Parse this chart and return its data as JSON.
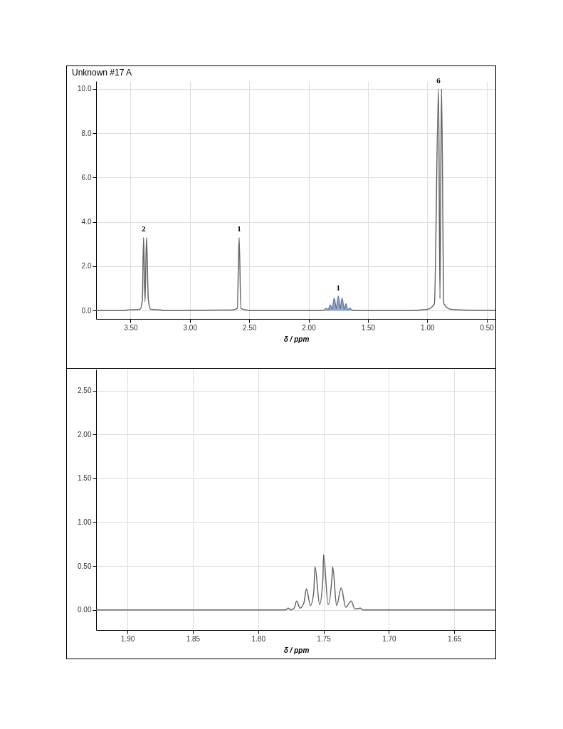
{
  "chart_data": [
    {
      "type": "line",
      "title": "Unknown #17 A",
      "xlabel": "δ / ppm",
      "xlim": [
        3.79,
        0.42
      ],
      "xticks": [
        {
          "value": 3.5,
          "label": "3.50"
        },
        {
          "value": 3.0,
          "label": "3.00"
        },
        {
          "value": 2.5,
          "label": "2.50"
        },
        {
          "value": 2.0,
          "label": "2.00"
        },
        {
          "value": 1.5,
          "label": "1.50"
        },
        {
          "value": 1.0,
          "label": "1.00"
        },
        {
          "value": 0.5,
          "label": "0.50"
        }
      ],
      "ylim": [
        -0.38,
        10.35
      ],
      "yticks": [
        {
          "value": 0,
          "label": "0.0"
        },
        {
          "value": 2,
          "label": "2.0"
        },
        {
          "value": 4,
          "label": "4.0"
        },
        {
          "value": 6,
          "label": "6.0"
        },
        {
          "value": 8,
          "label": "8.0"
        },
        {
          "value": 10,
          "label": "10.0"
        }
      ],
      "grid": true,
      "series": [
        {
          "color": "#666666",
          "x": [
            3.79,
            3.55,
            3.52,
            3.42,
            3.4,
            3.39,
            3.378,
            3.365,
            3.35,
            3.33,
            3.25,
            3.22,
            2.65,
            2.6,
            2.585,
            2.57,
            2.52,
            2.5,
            1.92,
            1.87,
            1.85,
            1.835,
            1.817,
            1.8,
            1.784,
            1.767,
            1.749,
            1.733,
            1.718,
            1.7,
            1.685,
            1.67,
            1.653,
            1.63,
            1.6,
            1.15,
            1.0,
            0.94,
            0.905,
            0.893,
            0.88,
            0.86,
            0.8,
            0.7,
            0.42
          ],
          "values": [
            0,
            0,
            0.03,
            0.05,
            0.5,
            3.3,
            0.4,
            3.3,
            0.5,
            0.05,
            0.03,
            0,
            0.02,
            0.1,
            3.3,
            0.1,
            0.02,
            0,
            0,
            0.01,
            0.1,
            0.02,
            0.25,
            0.05,
            0.55,
            0.08,
            0.65,
            0.08,
            0.55,
            0.05,
            0.3,
            0.03,
            0.1,
            0.01,
            0,
            0,
            0.05,
            0.3,
            10.0,
            0.54,
            10.0,
            0.3,
            0.05,
            0.02,
            0
          ]
        },
        {
          "type": "area",
          "color": "#7b96cc",
          "x": [
            1.87,
            1.85,
            1.835,
            1.817,
            1.8,
            1.784,
            1.767,
            1.749,
            1.733,
            1.718,
            1.7,
            1.685,
            1.67,
            1.653,
            1.63
          ],
          "values": [
            0.01,
            0.1,
            0.02,
            0.25,
            0.05,
            0.55,
            0.08,
            0.65,
            0.08,
            0.55,
            0.05,
            0.3,
            0.03,
            0.1,
            0.01
          ]
        }
      ],
      "annotations": [
        {
          "text": "2",
          "x": 3.39,
          "y": 3.3
        },
        {
          "text": "1",
          "x": 2.585,
          "y": 3.3
        },
        {
          "text": "1",
          "x": 1.749,
          "y": 0.65
        },
        {
          "text": "6",
          "x": 0.905,
          "y": 10.0
        }
      ]
    },
    {
      "type": "line",
      "xlabel": "δ / ppm",
      "xlim": [
        1.924,
        1.618
      ],
      "xticks": [
        {
          "value": 1.9,
          "label": "1.90"
        },
        {
          "value": 1.85,
          "label": "1.85"
        },
        {
          "value": 1.8,
          "label": "1.80"
        },
        {
          "value": 1.75,
          "label": "1.75"
        },
        {
          "value": 1.7,
          "label": "1.70"
        },
        {
          "value": 1.65,
          "label": "1.65"
        }
      ],
      "ylim": [
        -0.23,
        2.74
      ],
      "yticks": [
        {
          "value": 0,
          "label": "0.00"
        },
        {
          "value": 0.5,
          "label": "0.50"
        },
        {
          "value": 1,
          "label": "1.00"
        },
        {
          "value": 1.5,
          "label": "1.50"
        },
        {
          "value": 2,
          "label": "2.00"
        },
        {
          "value": 2.5,
          "label": "2.50"
        }
      ],
      "grid": true,
      "series": [
        {
          "color": "#666666",
          "x": [
            1.924,
            1.785,
            1.779,
            1.777,
            1.775,
            1.7725,
            1.7706,
            1.768,
            1.765,
            1.7631,
            1.76,
            1.7575,
            1.7565,
            1.753,
            1.7505,
            1.75,
            1.7465,
            1.7435,
            1.743,
            1.74,
            1.7365,
            1.733,
            1.7289,
            1.726,
            1.7218,
            1.72,
            1.618
          ],
          "values": [
            0,
            0,
            0,
            0.02,
            0,
            0.02,
            0.1,
            0.02,
            0.08,
            0.24,
            0.05,
            0.2,
            0.49,
            0.06,
            0.35,
            0.63,
            0.06,
            0.38,
            0.49,
            0.05,
            0.25,
            0.03,
            0.1,
            0.01,
            0.02,
            0,
            0
          ]
        }
      ]
    }
  ]
}
